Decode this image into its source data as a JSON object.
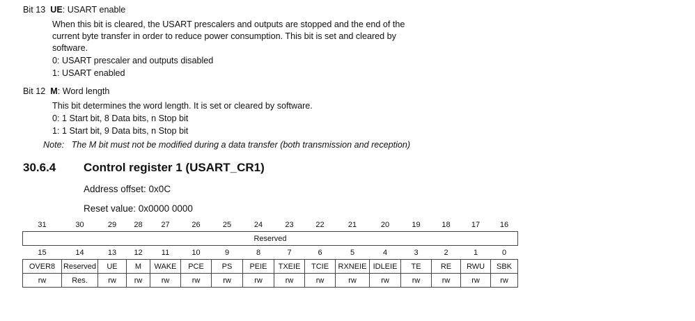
{
  "bit13": {
    "label": "Bit 13",
    "name": "UE",
    "title": ": USART enable",
    "lines": [
      "When this bit is cleared, the USART prescalers and outputs are stopped and the end of the",
      "current byte transfer in order to reduce power consumption. This bit is set and cleared by",
      "software.",
      "0: USART prescaler and outputs disabled",
      "1: USART enabled"
    ]
  },
  "bit12": {
    "label": "Bit 12",
    "name": "M",
    "title": ": Word length",
    "lines": [
      "This bit determines the word length. It is set or cleared by software.",
      "0: 1 Start bit, 8 Data bits, n Stop bit",
      "1: 1 Start bit, 9 Data bits, n Stop bit"
    ],
    "note_label": "Note:",
    "note_text": "The M bit must not be modified during a data transfer (both transmission and reception)"
  },
  "section": {
    "number": "30.6.4",
    "title": "Control register 1 (USART_CR1)",
    "address_offset": "Address offset: 0x0C",
    "reset_value": "Reset value: 0x0000 0000"
  },
  "register": {
    "upper_bits": [
      "31",
      "30",
      "29",
      "28",
      "27",
      "26",
      "25",
      "24",
      "23",
      "22",
      "21",
      "20",
      "19",
      "18",
      "17",
      "16"
    ],
    "upper_field": "Reserved",
    "lower_bits": [
      "15",
      "14",
      "13",
      "12",
      "11",
      "10",
      "9",
      "8",
      "7",
      "6",
      "5",
      "4",
      "3",
      "2",
      "1",
      "0"
    ],
    "lower_fields": [
      "OVER8",
      "Reserved",
      "UE",
      "M",
      "WAKE",
      "PCE",
      "PS",
      "PEIE",
      "TXEIE",
      "TCIE",
      "RXNEIE",
      "IDLEIE",
      "TE",
      "RE",
      "RWU",
      "SBK"
    ],
    "lower_access": [
      "rw",
      "Res.",
      "rw",
      "rw",
      "rw",
      "rw",
      "rw",
      "rw",
      "rw",
      "rw",
      "rw",
      "rw",
      "rw",
      "rw",
      "rw",
      "rw"
    ]
  }
}
